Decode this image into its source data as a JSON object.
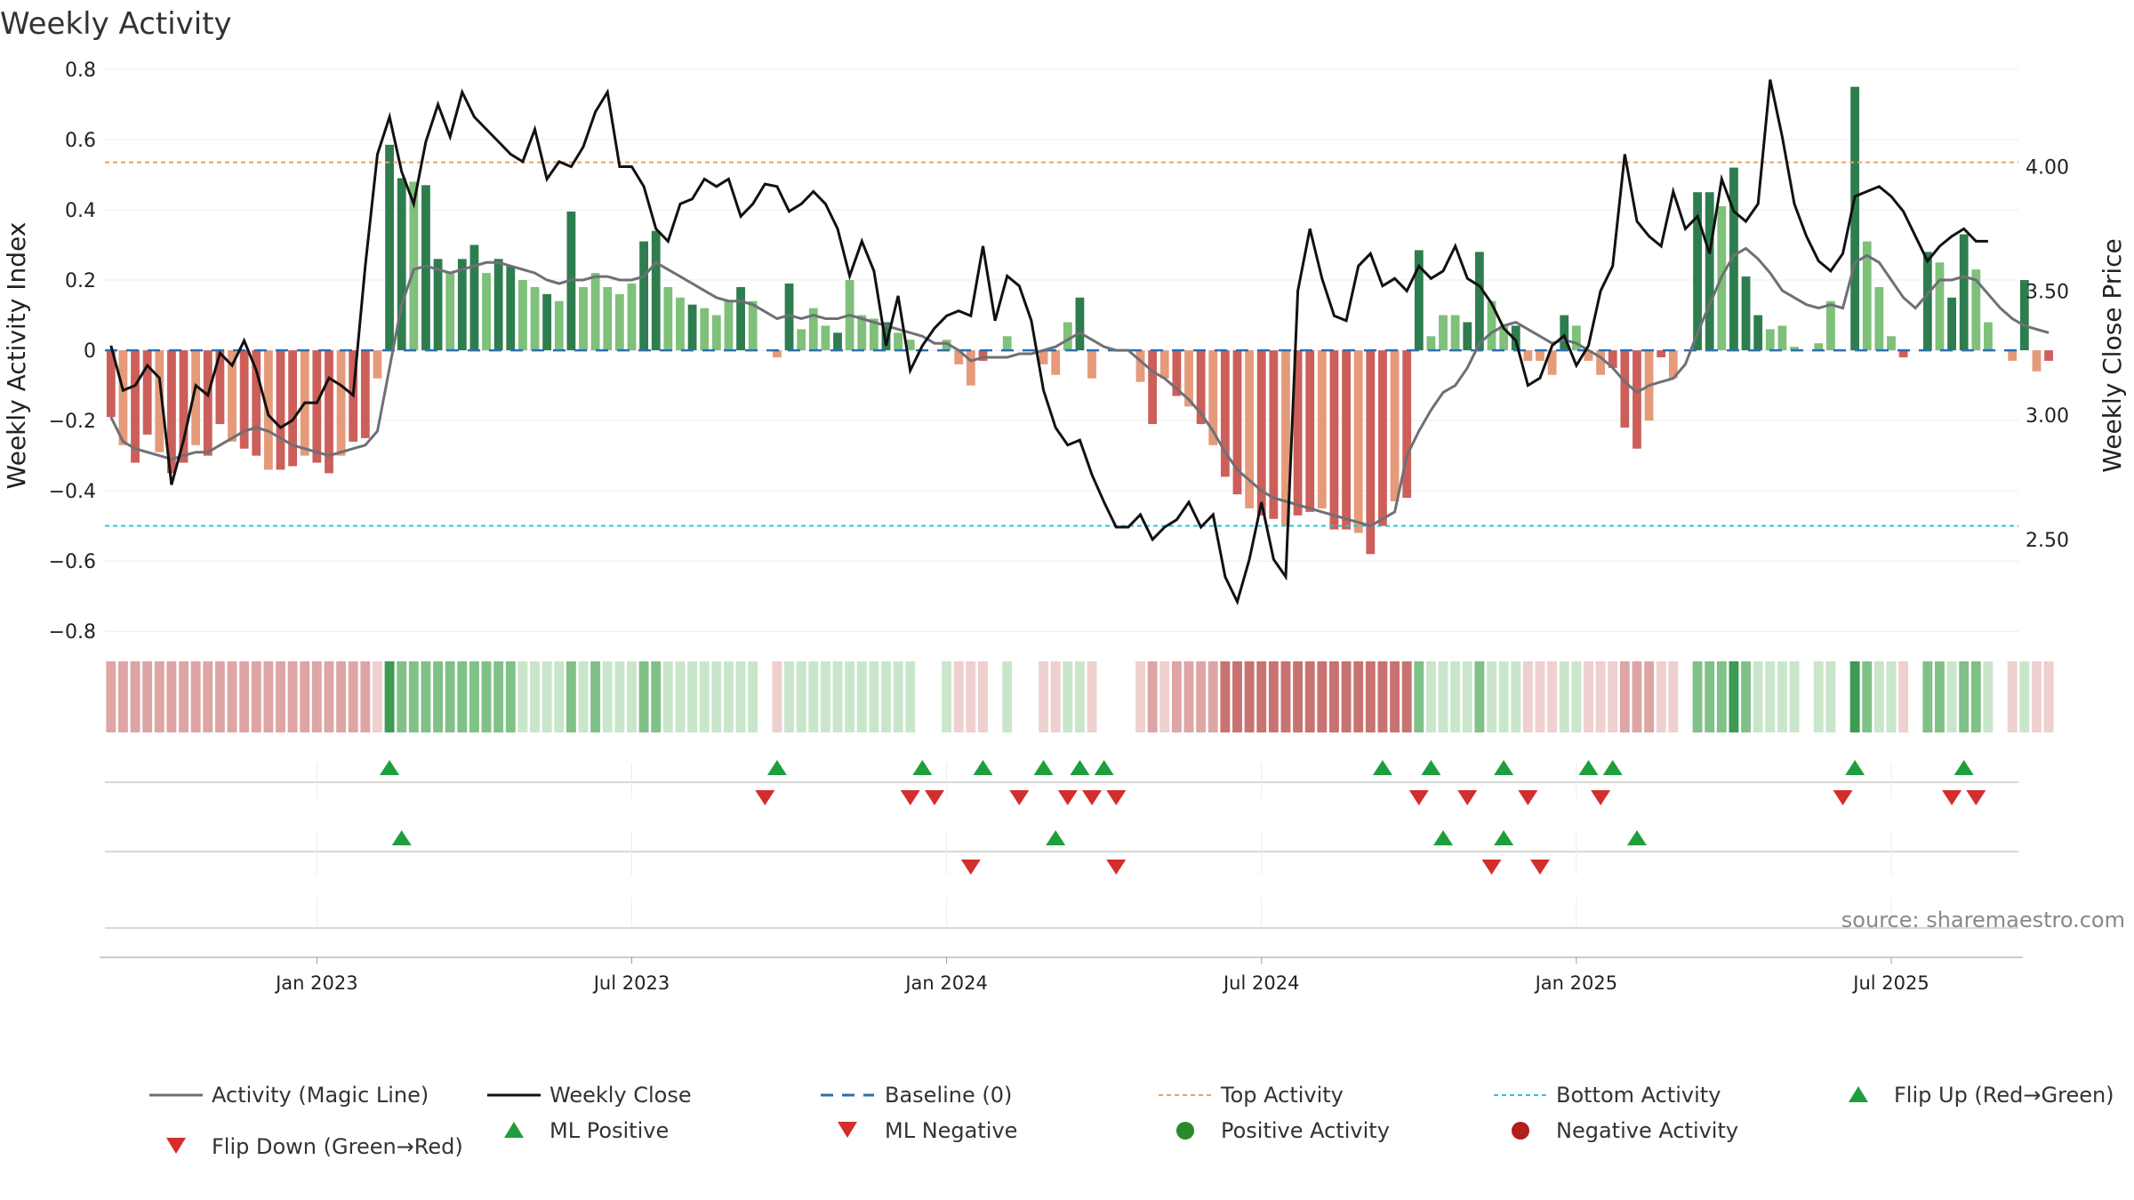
{
  "chart_data": {
    "type": "bar",
    "title": "Weekly Activity",
    "ylabel": "Weekly Activity Index",
    "y2label": "Weekly Close Price",
    "ylim": [
      -0.85,
      0.82
    ],
    "y2lim": [
      2.06,
      4.42
    ],
    "yticks": [
      "0.8",
      "0.6",
      "0.4",
      "0.2",
      "0",
      "−0.2",
      "−0.4",
      "−0.6",
      "−0.8"
    ],
    "ytick_values": [
      0.8,
      0.6,
      0.4,
      0.2,
      0,
      -0.2,
      -0.4,
      -0.6,
      -0.8
    ],
    "y2ticks": [
      "4.00",
      "3.50",
      "3.00",
      "2.50"
    ],
    "y2tick_values": [
      4.0,
      3.5,
      3.0,
      2.5
    ],
    "xticks": [
      "Jan 2023",
      "Jul 2023",
      "Jan 2024",
      "Jul 2024",
      "Jan 2025",
      "Jul 2025"
    ],
    "xtick_weeks": [
      17,
      43,
      69,
      95,
      121,
      147
    ],
    "weeks_total": 158,
    "top_activity": 0.535,
    "bottom_activity": -0.5,
    "baseline": 0,
    "activity": [
      -0.19,
      -0.27,
      -0.32,
      -0.24,
      -0.29,
      -0.35,
      -0.32,
      -0.27,
      -0.3,
      -0.21,
      -0.26,
      -0.28,
      -0.3,
      -0.34,
      -0.34,
      -0.33,
      -0.3,
      -0.32,
      -0.35,
      -0.3,
      -0.26,
      -0.25,
      -0.08,
      0.585,
      0.49,
      0.48,
      0.47,
      0.26,
      0.22,
      0.26,
      0.3,
      0.22,
      0.26,
      0.24,
      0.2,
      0.18,
      0.16,
      0.14,
      0.395,
      0.18,
      0.22,
      0.18,
      0.16,
      0.19,
      0.31,
      0.34,
      0.18,
      0.15,
      0.13,
      0.12,
      0.1,
      0.14,
      0.18,
      0.14,
      0.0,
      -0.02,
      0.19,
      0.06,
      0.12,
      0.07,
      0.05,
      0.2,
      0.1,
      0.09,
      0.08,
      0.05,
      0.03,
      0.0,
      0.0,
      0.03,
      -0.04,
      -0.1,
      -0.03,
      0.0,
      0.04,
      0.0,
      0.0,
      -0.04,
      -0.07,
      0.08,
      0.15,
      -0.08,
      0.0,
      0.0,
      0.0,
      -0.09,
      -0.21,
      -0.08,
      -0.13,
      -0.16,
      -0.21,
      -0.27,
      -0.36,
      -0.41,
      -0.45,
      -0.47,
      -0.48,
      -0.5,
      -0.47,
      -0.46,
      -0.45,
      -0.51,
      -0.51,
      -0.52,
      -0.58,
      -0.5,
      -0.43,
      -0.42,
      0.285,
      0.04,
      0.1,
      0.1,
      0.08,
      0.28,
      0.14,
      0.07,
      0.07,
      -0.03,
      -0.03,
      -0.07,
      0.1,
      0.07,
      -0.03,
      -0.07,
      -0.05,
      -0.22,
      -0.28,
      -0.2,
      -0.02,
      -0.08,
      0.0,
      0.45,
      0.45,
      0.41,
      0.52,
      0.21,
      0.1,
      0.06,
      0.07,
      0.01,
      0.0,
      0.02,
      0.14,
      0.0,
      0.75,
      0.31,
      0.18,
      0.04,
      -0.02,
      0.0,
      0.28,
      0.25,
      0.15,
      0.33,
      0.23,
      0.08,
      0.0,
      -0.03,
      0.2,
      -0.06,
      -0.03
    ],
    "magic_line": [
      -0.19,
      -0.26,
      -0.28,
      -0.29,
      -0.3,
      -0.31,
      -0.3,
      -0.29,
      -0.29,
      -0.27,
      -0.25,
      -0.23,
      -0.22,
      -0.23,
      -0.25,
      -0.27,
      -0.28,
      -0.29,
      -0.3,
      -0.29,
      -0.28,
      -0.27,
      -0.23,
      -0.05,
      0.13,
      0.23,
      0.24,
      0.23,
      0.22,
      0.23,
      0.24,
      0.25,
      0.25,
      0.24,
      0.23,
      0.22,
      0.2,
      0.19,
      0.2,
      0.2,
      0.21,
      0.21,
      0.2,
      0.2,
      0.21,
      0.25,
      0.23,
      0.21,
      0.19,
      0.17,
      0.15,
      0.14,
      0.14,
      0.13,
      0.11,
      0.09,
      0.1,
      0.09,
      0.1,
      0.09,
      0.09,
      0.1,
      0.09,
      0.08,
      0.07,
      0.06,
      0.05,
      0.04,
      0.02,
      0.02,
      0.0,
      -0.03,
      -0.02,
      -0.02,
      -0.02,
      -0.01,
      -0.01,
      0.0,
      0.01,
      0.03,
      0.05,
      0.03,
      0.01,
      0.0,
      0.0,
      -0.03,
      -0.06,
      -0.08,
      -0.11,
      -0.14,
      -0.18,
      -0.23,
      -0.29,
      -0.34,
      -0.37,
      -0.4,
      -0.42,
      -0.43,
      -0.44,
      -0.45,
      -0.46,
      -0.47,
      -0.48,
      -0.49,
      -0.5,
      -0.48,
      -0.46,
      -0.3,
      -0.23,
      -0.17,
      -0.12,
      -0.1,
      -0.05,
      0.02,
      0.05,
      0.07,
      0.08,
      0.06,
      0.04,
      0.02,
      0.03,
      0.02,
      0.0,
      -0.02,
      -0.05,
      -0.09,
      -0.12,
      -0.1,
      -0.09,
      -0.08,
      -0.04,
      0.05,
      0.13,
      0.21,
      0.27,
      0.29,
      0.26,
      0.22,
      0.17,
      0.15,
      0.13,
      0.12,
      0.13,
      0.12,
      0.25,
      0.27,
      0.25,
      0.2,
      0.15,
      0.12,
      0.16,
      0.2,
      0.2,
      0.21,
      0.2,
      0.16,
      0.12,
      0.09,
      0.07,
      0.06,
      0.05
    ],
    "weekly_close": [
      3.28,
      3.1,
      3.12,
      3.2,
      3.15,
      2.72,
      2.9,
      3.12,
      3.08,
      3.25,
      3.2,
      3.3,
      3.18,
      3.0,
      2.95,
      2.98,
      3.05,
      3.05,
      3.15,
      3.12,
      3.08,
      3.6,
      4.05,
      4.2,
      3.98,
      3.85,
      4.1,
      4.25,
      4.12,
      4.3,
      4.2,
      4.15,
      4.1,
      4.05,
      4.02,
      4.15,
      3.95,
      4.02,
      4.0,
      4.08,
      4.22,
      4.3,
      4.0,
      4.0,
      3.92,
      3.75,
      3.7,
      3.85,
      3.87,
      3.95,
      3.92,
      3.95,
      3.8,
      3.85,
      3.93,
      3.92,
      3.82,
      3.85,
      3.9,
      3.85,
      3.75,
      3.56,
      3.7,
      3.58,
      3.28,
      3.48,
      3.18,
      3.28,
      3.35,
      3.4,
      3.42,
      3.4,
      3.68,
      3.38,
      3.56,
      3.52,
      3.38,
      3.1,
      2.95,
      2.88,
      2.9,
      2.76,
      2.65,
      2.55,
      2.55,
      2.6,
      2.5,
      2.55,
      2.58,
      2.65,
      2.55,
      2.6,
      2.35,
      2.25,
      2.42,
      2.65,
      2.42,
      2.35,
      3.5,
      3.75,
      3.55,
      3.4,
      3.38,
      3.6,
      3.65,
      3.52,
      3.55,
      3.5,
      3.6,
      3.55,
      3.58,
      3.68,
      3.55,
      3.52,
      3.45,
      3.35,
      3.3,
      3.12,
      3.15,
      3.28,
      3.32,
      3.2,
      3.28,
      3.5,
      3.6,
      4.05,
      3.78,
      3.72,
      3.68,
      3.9,
      3.75,
      3.8,
      3.65,
      3.95,
      3.82,
      3.78,
      3.85,
      4.35,
      4.12,
      3.85,
      3.72,
      3.62,
      3.58,
      3.65,
      3.88,
      3.9,
      3.92,
      3.88,
      3.82,
      3.72,
      3.62,
      3.68,
      3.72,
      3.75,
      3.7,
      3.7
    ]
  },
  "heat_colors": {
    "strong_red": "#c87372",
    "mid_red": "#dea5a5",
    "light_red": "#eed0cf",
    "strong_green": "#3d9a53",
    "mid_green": "#80c188",
    "light_green": "#c9e6cb"
  },
  "signals": {
    "flip_up": [
      23,
      55,
      67,
      72,
      77,
      80,
      82,
      105,
      109,
      115,
      122,
      124,
      144,
      153
    ],
    "flip_down": [
      54,
      66,
      68,
      75,
      79,
      81,
      83,
      108,
      112,
      117,
      123,
      143,
      152,
      154
    ],
    "ml_positive": [
      24,
      78,
      110,
      115,
      126
    ],
    "ml_negative": [
      71,
      83,
      114,
      118
    ]
  },
  "colors": {
    "bar_pos_strong": "#2e7d4f",
    "bar_pos_weak": "#7fc07a",
    "bar_neg_strong": "#cc5f5a",
    "bar_neg_weak": "#e59a7a",
    "magic_line": "#6e7075",
    "weekly_close": "#111111",
    "baseline": "#2b6fb3",
    "top_activity": "#f2a05a",
    "bottom_activity": "#2cc4d8",
    "marker_up": "#1e9e3c",
    "marker_down": "#d42d2d",
    "positive_activity": "#2a8a2a",
    "negative_activity": "#b31d1d"
  },
  "source": "source: sharemaestro.com",
  "legend": {
    "magic_line": "Activity (Magic Line)",
    "weekly_close": "Weekly Close",
    "baseline": "Baseline (0)",
    "top_activity": "Top Activity",
    "bottom_activity": "Bottom Activity",
    "flip_up": "Flip Up (Red→Green)",
    "flip_down": "Flip Down (Green→Red)",
    "ml_positive": "ML Positive",
    "ml_negative": "ML Negative",
    "positive_activity": "Positive Activity",
    "negative_activity": "Negative Activity"
  }
}
